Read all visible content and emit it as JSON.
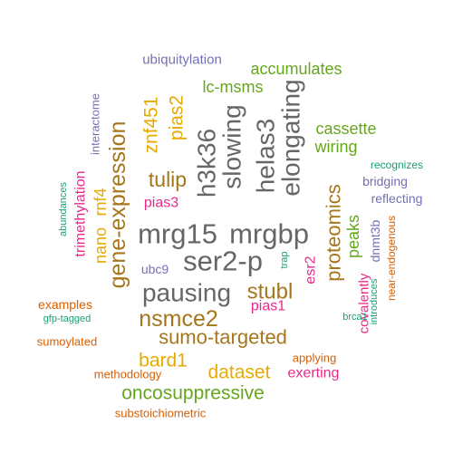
{
  "word_cloud": {
    "palette": {
      "gray": "#666666",
      "brown": "#a6761d",
      "gold": "#e6ab02",
      "green": "#66a61e",
      "magenta": "#e7298a",
      "purple": "#7570b3",
      "orange": "#d95f02",
      "teal": "#1b9e77"
    },
    "words": [
      {
        "text": "mrg15",
        "color": "#666666"
      },
      {
        "text": "mrgbp",
        "color": "#666666"
      },
      {
        "text": "ser2-p",
        "color": "#666666"
      },
      {
        "text": "pausing",
        "color": "#666666"
      },
      {
        "text": "h3k36",
        "color": "#666666"
      },
      {
        "text": "slowing",
        "color": "#666666"
      },
      {
        "text": "helas3",
        "color": "#666666"
      },
      {
        "text": "elongating",
        "color": "#666666"
      },
      {
        "text": "gene-expression",
        "color": "#a6761d"
      },
      {
        "text": "nsmce2",
        "color": "#a6761d"
      },
      {
        "text": "sumo-targeted",
        "color": "#a6761d"
      },
      {
        "text": "stubl",
        "color": "#a6761d"
      },
      {
        "text": "tulip",
        "color": "#a6761d"
      },
      {
        "text": "proteomics",
        "color": "#a6761d"
      },
      {
        "text": "dataset",
        "color": "#e6ab02"
      },
      {
        "text": "bard1",
        "color": "#e6ab02"
      },
      {
        "text": "znf451",
        "color": "#e6ab02"
      },
      {
        "text": "pias2",
        "color": "#e6ab02"
      },
      {
        "text": "nano",
        "color": "#e6ab02"
      },
      {
        "text": "rnf4",
        "color": "#e6ab02"
      },
      {
        "text": "oncosuppressive",
        "color": "#66a61e"
      },
      {
        "text": "accumulates",
        "color": "#66a61e"
      },
      {
        "text": "lc-msms",
        "color": "#66a61e"
      },
      {
        "text": "cassette",
        "color": "#66a61e"
      },
      {
        "text": "wiring",
        "color": "#66a61e"
      },
      {
        "text": "peaks",
        "color": "#66a61e"
      },
      {
        "text": "trimethylation",
        "color": "#e7298a"
      },
      {
        "text": "pias3",
        "color": "#e7298a"
      },
      {
        "text": "pias1",
        "color": "#e7298a"
      },
      {
        "text": "esr2",
        "color": "#e7298a"
      },
      {
        "text": "covalently",
        "color": "#e7298a"
      },
      {
        "text": "exerting",
        "color": "#e7298a"
      },
      {
        "text": "ubiquitylation",
        "color": "#7570b3"
      },
      {
        "text": "interactome",
        "color": "#7570b3"
      },
      {
        "text": "ubc9",
        "color": "#7570b3"
      },
      {
        "text": "bridging",
        "color": "#7570b3"
      },
      {
        "text": "reflecting",
        "color": "#7570b3"
      },
      {
        "text": "dnmt3b",
        "color": "#7570b3"
      },
      {
        "text": "examples",
        "color": "#d95f02"
      },
      {
        "text": "sumoylated",
        "color": "#d95f02"
      },
      {
        "text": "methodology",
        "color": "#d95f02"
      },
      {
        "text": "substoichiometric",
        "color": "#d95f02"
      },
      {
        "text": "applying",
        "color": "#d95f02"
      },
      {
        "text": "near-endogenous",
        "color": "#d95f02"
      },
      {
        "text": "recognizes",
        "color": "#1b9e77"
      },
      {
        "text": "abundances",
        "color": "#1b9e77"
      },
      {
        "text": "gfp-tagged",
        "color": "#1b9e77"
      },
      {
        "text": "trap",
        "color": "#1b9e77"
      },
      {
        "text": "brca1",
        "color": "#1b9e77"
      },
      {
        "text": "introduces",
        "color": "#1b9e77"
      }
    ]
  }
}
